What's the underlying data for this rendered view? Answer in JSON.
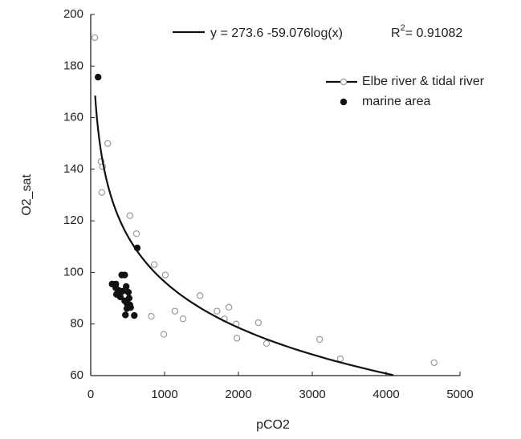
{
  "chart_data": {
    "type": "scatter",
    "x_label": "pCO2",
    "y_label": "O2_sat",
    "xlim": [
      0,
      5000
    ],
    "ylim": [
      60,
      200
    ],
    "xticks": [
      0,
      1000,
      2000,
      3000,
      4000,
      5000
    ],
    "yticks": [
      60,
      80,
      100,
      120,
      140,
      160,
      180,
      200
    ],
    "fit": {
      "label": "y = 273.6 -59.076log(x)",
      "r_squared_label": [
        "R",
        "2",
        "= 0.91082"
      ],
      "intercept": 273.6,
      "slope": -59.076,
      "x_range": [
        60,
        4100
      ],
      "color": "#111111"
    },
    "series": [
      {
        "name": "Elbe river & tidal river",
        "color": "#999999",
        "filled": false,
        "x": [
          55,
          140,
          160,
          150,
          230,
          530,
          620,
          860,
          1010,
          820,
          990,
          1140,
          1250,
          1480,
          1710,
          1810,
          1870,
          1970,
          1980,
          2270,
          2380,
          3100,
          3380,
          4650
        ],
        "y": [
          191,
          143,
          141,
          131,
          150,
          122,
          115,
          103,
          99,
          83,
          76,
          85,
          82,
          91,
          85,
          82,
          86.5,
          80,
          74.5,
          80.5,
          72.5,
          74,
          66.5,
          65
        ]
      },
      {
        "name": "marine area",
        "color": "#111111",
        "filled": true,
        "x": [
          100,
          630,
          290,
          340,
          380,
          420,
          460,
          350,
          400,
          430,
          480,
          510,
          460,
          490,
          530,
          490,
          540,
          470,
          590,
          340,
          520
        ],
        "y": [
          175.7,
          109.5,
          95.5,
          94,
          93,
          99,
          99,
          91.5,
          90.5,
          92.7,
          94.5,
          92.3,
          89,
          88,
          87.4,
          86,
          86.4,
          83.5,
          83.3,
          95.5,
          90
        ]
      }
    ]
  }
}
